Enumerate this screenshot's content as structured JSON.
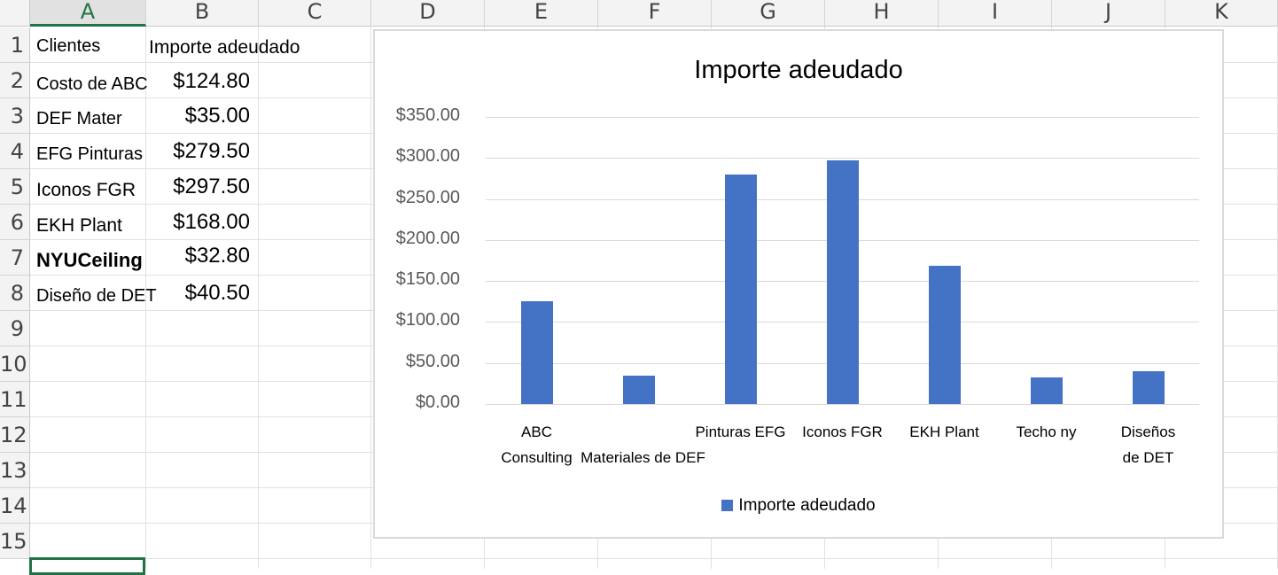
{
  "sheet": {
    "columns": [
      "A",
      "B",
      "C",
      "D",
      "E",
      "F",
      "G",
      "H",
      "I",
      "J",
      "K"
    ],
    "rows": [
      "1",
      "2",
      "3",
      "4",
      "5",
      "6",
      "7",
      "8",
      "9",
      "10",
      "11",
      "12",
      "13",
      "14",
      "15"
    ],
    "active_column": "A"
  },
  "table": {
    "header": {
      "clientes": "Clientes",
      "importe": "Importe adeudado"
    },
    "rows": [
      {
        "name": "Costo de ABC",
        "amount": "$124.80"
      },
      {
        "name": "DEF Mater",
        "amount": "$35.00"
      },
      {
        "name": "EFG Pinturas",
        "amount": "$279.50"
      },
      {
        "name": "Iconos FGR",
        "amount": "$297.50"
      },
      {
        "name": "EKH Plant",
        "amount": "$168.00"
      },
      {
        "name": "NYUCeiling",
        "amount": "$32.80"
      },
      {
        "name": "Diseño de DET",
        "amount": "$40.50"
      }
    ]
  },
  "chart_data": {
    "type": "bar",
    "title": "Importe adeudado",
    "categories": [
      "ABC Consulting",
      "Materiales de DEF",
      "Pinturas EFG",
      "Iconos FGR",
      "EKH Plant",
      "Techo ny",
      "Diseños de DET"
    ],
    "category_labels": [
      [
        "ABC",
        "Consulting"
      ],
      [
        "",
        "Materiales de DEF"
      ],
      [
        "Pinturas EFG"
      ],
      [
        "Iconos FGR"
      ],
      [
        "EKH Plant"
      ],
      [
        "Techo ny"
      ],
      [
        "Diseños",
        "de DET"
      ]
    ],
    "series": [
      {
        "name": "Importe adeudado",
        "values": [
          124.8,
          35.0,
          279.5,
          297.5,
          168.0,
          32.8,
          40.5
        ],
        "color": "#4472c4"
      }
    ],
    "y_ticks": [
      "$0.00",
      "$50.00",
      "$100.00",
      "$150.00",
      "$200.00",
      "$250.00",
      "$300.00",
      "$350.00"
    ],
    "ylim": [
      0,
      350
    ],
    "grid": true,
    "legend_position": "bottom"
  }
}
